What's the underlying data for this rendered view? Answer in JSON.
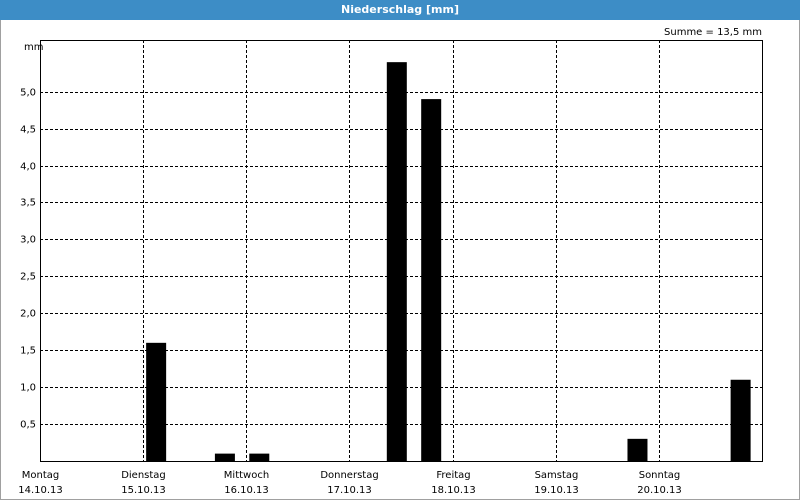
{
  "chart_data": {
    "type": "bar",
    "title": "Niederschlag [mm]",
    "annotation": "Summe = 13,5 mm",
    "y_unit": "mm",
    "categories": [
      "Montag",
      null,
      null,
      "Dienstag",
      null,
      null,
      "Mittwoch",
      null,
      null,
      "Donnerstag",
      null,
      null,
      "Freitag",
      null,
      null,
      "Samstag",
      null,
      null,
      "Sonntag",
      null,
      null
    ],
    "category_dates": [
      "14.10.13",
      null,
      null,
      "15.10.13",
      null,
      null,
      "16.10.13",
      null,
      null,
      "17.10.13",
      null,
      null,
      "18.10.13",
      null,
      null,
      "19.10.13",
      null,
      null,
      "20.10.13",
      null,
      null
    ],
    "values": [
      0,
      0,
      0,
      1.6,
      0,
      0.1,
      0.1,
      0,
      0,
      0,
      5.4,
      4.9,
      0,
      0,
      0,
      0,
      0,
      0.3,
      0,
      0,
      1.1
    ],
    "color": "#000000",
    "ylim": [
      0,
      5.7
    ],
    "yticks": [
      {
        "value": 0.5,
        "label": "0,5"
      },
      {
        "value": 1.0,
        "label": "1,0"
      },
      {
        "value": 1.5,
        "label": "1,5"
      },
      {
        "value": 2.0,
        "label": "2,0"
      },
      {
        "value": 2.5,
        "label": "2,5"
      },
      {
        "value": 3.0,
        "label": "3,0"
      },
      {
        "value": 3.5,
        "label": "3,5"
      },
      {
        "value": 4.0,
        "label": "4,0"
      },
      {
        "value": 4.5,
        "label": "4,5"
      },
      {
        "value": 5.0,
        "label": "5,0"
      }
    ],
    "grid": true
  }
}
